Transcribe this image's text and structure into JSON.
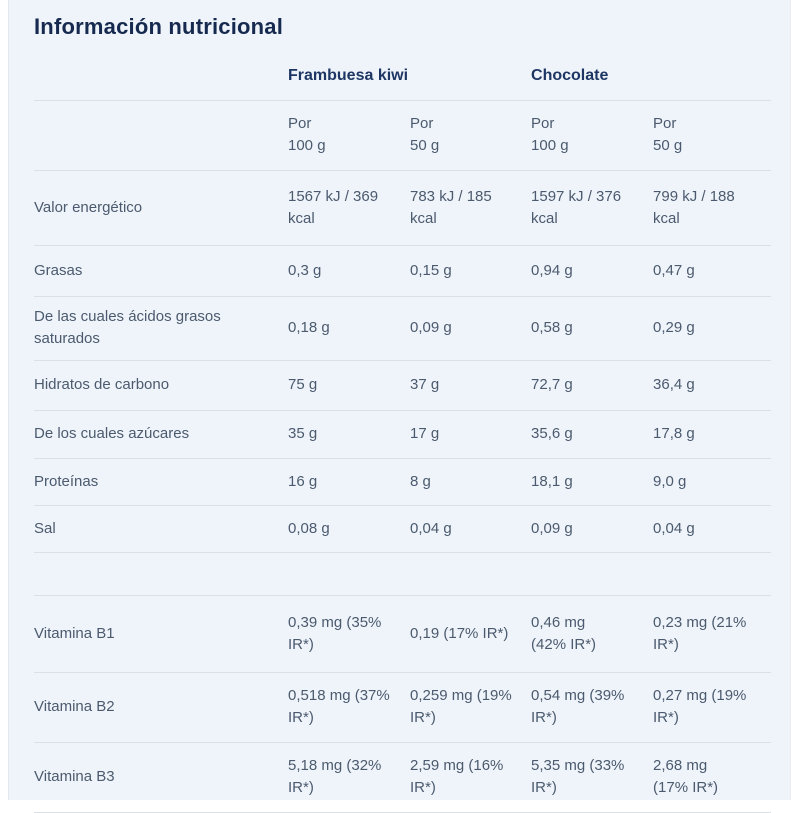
{
  "title": "Información nutricional",
  "colors": {
    "panel_background": "#eff4fa",
    "title_text": "#16294f",
    "group_header_text": "#1d3664",
    "body_text": "#4b5a6e",
    "divider": "#dbe0e6"
  },
  "table": {
    "groups": [
      {
        "label": "Frambuesa kiwi"
      },
      {
        "label": "Chocolate"
      }
    ],
    "subheaders": [
      "Por\n100 g",
      "Por\n50 g",
      "Por\n100 g",
      "Por\n50 g"
    ],
    "rows": [
      {
        "label": "Valor energético",
        "values": [
          "1567 kJ / 369\nkcal",
          "783 kJ / 185\nkcal",
          "1597 kJ / 376\nkcal",
          "799 kJ / 188\nkcal"
        ]
      },
      {
        "label": "Grasas",
        "values": [
          "0,3 g",
          "0,15 g",
          "0,94 g",
          "0,47 g"
        ]
      },
      {
        "label": "De las cuales ácidos grasos saturados",
        "values": [
          "0,18 g",
          "0,09 g",
          "0,58 g",
          "0,29 g"
        ]
      },
      {
        "label": "Hidratos de carbono",
        "values": [
          "75 g",
          "37 g",
          "72,7 g",
          "36,4 g"
        ]
      },
      {
        "label": "De los cuales azúcares",
        "values": [
          "35 g",
          "17 g",
          "35,6 g",
          "17,8 g"
        ]
      },
      {
        "label": "Proteínas",
        "values": [
          "16 g",
          "8 g",
          "18,1 g",
          "9,0 g"
        ]
      },
      {
        "label": "Sal",
        "values": [
          "0,08 g",
          "0,04 g",
          "0,09 g",
          "0,04 g"
        ]
      },
      {
        "label": "Vitamina B1",
        "values": [
          "0,39 mg (35%\nIR*)",
          "0,19 (17% IR*)",
          "0,46 mg\n(42% IR*)",
          "0,23 mg (21%\nIR*)"
        ]
      },
      {
        "label": "Vitamina B2",
        "values": [
          "0,518 mg (37%\nIR*)",
          "0,259 mg (19%\nIR*)",
          "0,54 mg (39%\nIR*)",
          "0,27 mg (19%\nIR*)"
        ]
      },
      {
        "label": "Vitamina B3",
        "values": [
          "5,18 mg (32%\nIR*)",
          "2,59 mg (16%\nIR*)",
          "5,35 mg (33%\nIR*)",
          "2,68 mg\n(17% IR*)"
        ]
      }
    ]
  }
}
